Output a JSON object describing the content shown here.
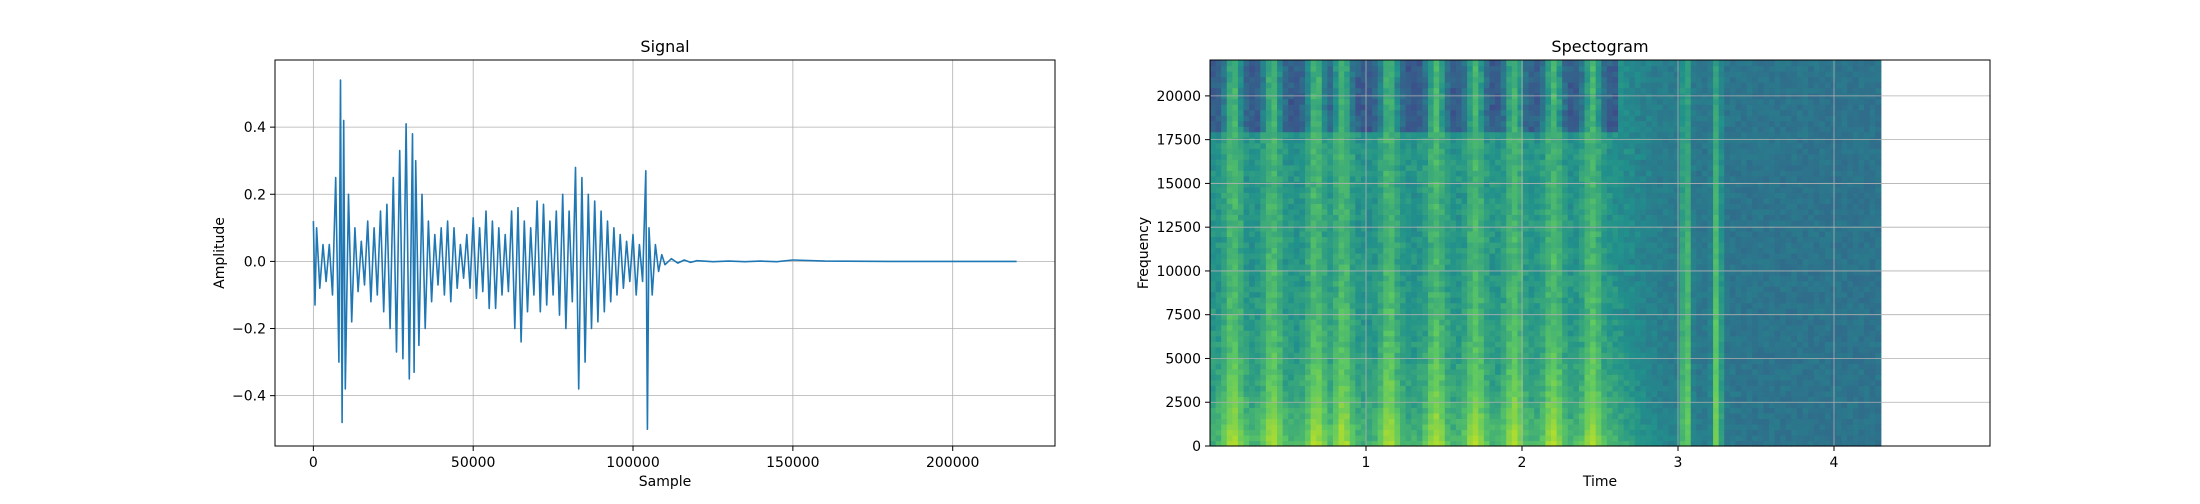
{
  "chart_data": [
    {
      "type": "line",
      "title": "Signal",
      "xlabel": "Sample",
      "ylabel": "Amplitude",
      "xlim": [
        -12000,
        232000
      ],
      "ylim": [
        -0.55,
        0.6
      ],
      "grid": true,
      "xticks": [
        0,
        50000,
        100000,
        150000,
        200000
      ],
      "xtick_labels": [
        "0",
        "50000",
        "100000",
        "150000",
        "200000"
      ],
      "yticks": [
        -0.4,
        -0.2,
        0.0,
        0.2,
        0.4
      ],
      "ytick_labels": [
        "−0.4",
        "−0.2",
        "0.0",
        "0.2",
        "0.4"
      ],
      "series": [
        {
          "color": "#1f77b4",
          "x": [
            0,
            500,
            1000,
            2000,
            3000,
            4000,
            5000,
            6000,
            7000,
            8000,
            8500,
            9000,
            9500,
            10000,
            11000,
            12000,
            13000,
            14000,
            15000,
            16000,
            17000,
            18000,
            19000,
            20000,
            21000,
            22000,
            23000,
            24000,
            25000,
            26000,
            27000,
            28000,
            29000,
            30000,
            31000,
            31500,
            32000,
            33000,
            34000,
            35000,
            36000,
            37000,
            38000,
            39000,
            40000,
            41000,
            42000,
            43000,
            44000,
            45000,
            46000,
            47000,
            48000,
            49000,
            50000,
            51000,
            52000,
            53000,
            54000,
            55000,
            56000,
            57000,
            58000,
            59000,
            60000,
            61000,
            62000,
            63000,
            64000,
            65000,
            66000,
            67000,
            68000,
            69000,
            70000,
            71000,
            72000,
            73000,
            74000,
            75000,
            76000,
            77000,
            78000,
            79000,
            80000,
            81000,
            82000,
            83000,
            84000,
            85000,
            86000,
            87000,
            88000,
            89000,
            90000,
            91000,
            92000,
            93000,
            94000,
            95000,
            96000,
            97000,
            98000,
            99000,
            100000,
            101000,
            102000,
            103000,
            104000,
            104500,
            105000,
            106000,
            107000,
            108000,
            109000,
            110000,
            112000,
            114000,
            116000,
            118000,
            120000,
            125000,
            130000,
            135000,
            140000,
            145000,
            150000,
            160000,
            180000,
            200000,
            220000
          ],
          "y": [
            0.12,
            -0.13,
            0.1,
            -0.08,
            0.05,
            -0.06,
            0.05,
            -0.1,
            0.25,
            -0.3,
            0.54,
            -0.48,
            0.42,
            -0.38,
            0.2,
            -0.18,
            0.1,
            -0.09,
            0.06,
            -0.07,
            0.12,
            -0.12,
            0.1,
            -0.1,
            0.15,
            -0.15,
            0.17,
            -0.2,
            0.25,
            -0.27,
            0.33,
            -0.29,
            0.41,
            -0.35,
            0.38,
            -0.33,
            0.3,
            -0.25,
            0.2,
            -0.2,
            0.12,
            -0.12,
            0.08,
            -0.07,
            0.1,
            -0.1,
            0.12,
            -0.12,
            0.1,
            -0.08,
            0.05,
            -0.05,
            0.08,
            -0.08,
            0.13,
            -0.11,
            0.1,
            -0.09,
            0.15,
            -0.14,
            0.12,
            -0.14,
            0.1,
            -0.1,
            0.08,
            -0.09,
            0.15,
            -0.2,
            0.16,
            -0.24,
            0.12,
            -0.15,
            0.1,
            -0.1,
            0.18,
            -0.15,
            0.17,
            -0.13,
            0.12,
            -0.1,
            0.15,
            -0.16,
            0.2,
            -0.2,
            0.15,
            -0.12,
            0.28,
            -0.38,
            0.25,
            -0.3,
            0.2,
            -0.2,
            0.18,
            -0.18,
            0.15,
            -0.15,
            0.12,
            -0.12,
            0.1,
            -0.1,
            0.08,
            -0.08,
            0.06,
            -0.06,
            0.08,
            -0.1,
            0.05,
            -0.06,
            0.27,
            -0.5,
            0.1,
            -0.1,
            0.05,
            -0.03,
            0.02,
            -0.01,
            0.008,
            -0.005,
            0.004,
            -0.003,
            0.002,
            -0.001,
            0.001,
            -0.001,
            0.001,
            -0.001,
            0.004,
            0.001,
            0.0,
            0.0,
            0.0
          ]
        }
      ]
    },
    {
      "type": "heatmap",
      "title": "Spectogram",
      "xlabel": "Time",
      "ylabel": "Frequency",
      "xlim": [
        0,
        5.0
      ],
      "ylim": [
        0,
        22050
      ],
      "data_xlim": [
        0,
        4.3
      ],
      "grid": true,
      "xticks": [
        1,
        2,
        3,
        4
      ],
      "xtick_labels": [
        "1",
        "2",
        "3",
        "4"
      ],
      "yticks": [
        0,
        2500,
        5000,
        7500,
        10000,
        12500,
        15000,
        17500,
        20000
      ],
      "ytick_labels": [
        "0",
        "2500",
        "5000",
        "7500",
        "10000",
        "12500",
        "15000",
        "17500",
        "20000"
      ],
      "colormap": [
        "#440154",
        "#3b528b",
        "#21918c",
        "#5ec962",
        "#b5de2b",
        "#fde725"
      ],
      "bursts": [
        0.15,
        0.4,
        0.68,
        0.85,
        1.15,
        1.45,
        1.7,
        1.95,
        2.2,
        2.45
      ],
      "speech_end": 2.6,
      "noise_tail": [
        3.05,
        3.25
      ]
    }
  ]
}
